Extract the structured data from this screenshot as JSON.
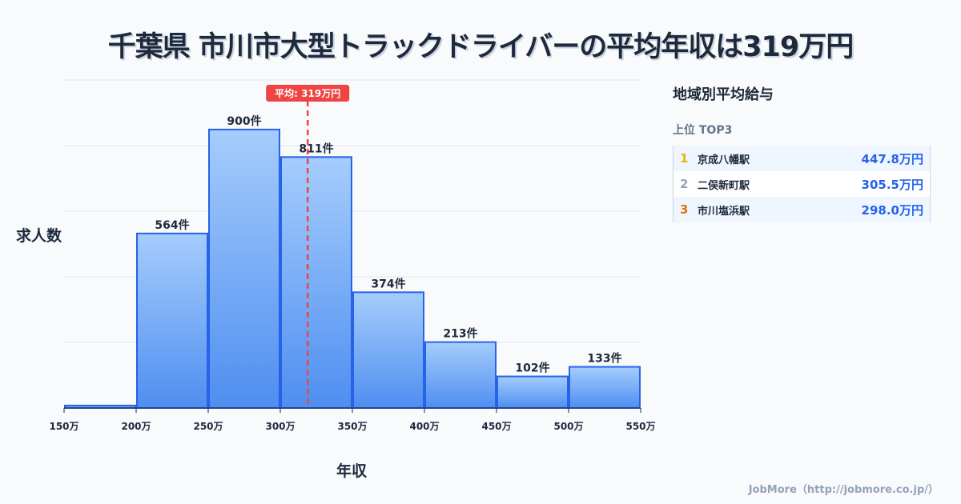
{
  "title": "千葉県 市川市大型トラックドライバーの平均年収は319万円",
  "chart_data": {
    "type": "bar",
    "title": "千葉県 市川市大型トラックドライバーの平均年収は319万円",
    "xlabel": "年収",
    "ylabel": "求人数",
    "bin_edges": [
      150,
      200,
      250,
      300,
      350,
      400,
      450,
      500,
      550
    ],
    "tick_labels": [
      "150万",
      "200万",
      "250万",
      "300万",
      "350万",
      "400万",
      "450万",
      "500万",
      "550万"
    ],
    "values": [
      8,
      564,
      900,
      811,
      374,
      213,
      102,
      133
    ],
    "value_labels": [
      "",
      "564件",
      "900件",
      "811件",
      "374件",
      "213件",
      "102件",
      "133件"
    ],
    "ylim": [
      0,
      1060
    ],
    "grid": true,
    "mean": 319,
    "mean_label": "平均: 319万円"
  },
  "sidebar": {
    "heading": "地域別平均給与",
    "subheading": "上位 TOP3",
    "items": [
      {
        "rank": "1",
        "name": "京成八幡駅",
        "value": "447.8万円",
        "color": "#eab308"
      },
      {
        "rank": "2",
        "name": "二俣新町駅",
        "value": "305.5万円",
        "color": "#94a3b8"
      },
      {
        "rank": "3",
        "name": "市川塩浜駅",
        "value": "298.0万円",
        "color": "#d97706"
      }
    ]
  },
  "footer": "JobMore（http://jobmore.co.jp/）"
}
